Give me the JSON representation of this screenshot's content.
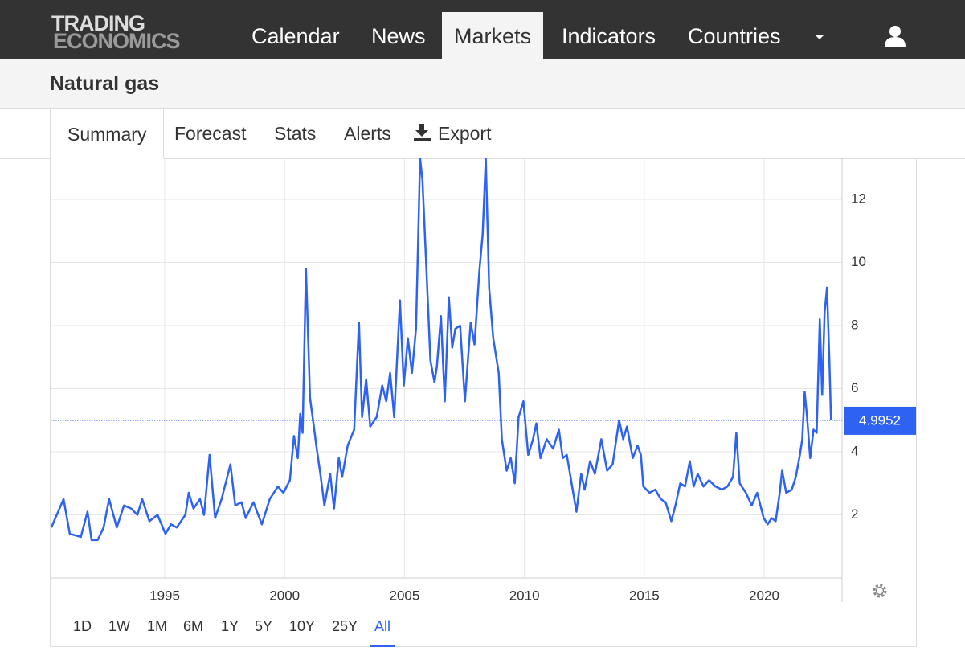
{
  "nav": {
    "logo": [
      "TRADING",
      "ECONOMICS"
    ],
    "items": [
      "Calendar",
      "News",
      "Markets",
      "Indicators",
      "Countries"
    ],
    "active": 2
  },
  "header": {
    "title": "Natural gas"
  },
  "tabs": {
    "items": [
      "Summary",
      "Forecast",
      "Stats",
      "Alerts",
      "Export"
    ],
    "active": 0
  },
  "chart_data": {
    "type": "line",
    "color": "#2d62f2",
    "x": [
      1990.27,
      1990.78,
      1991.04,
      1991.5,
      1991.78,
      1991.95,
      1992.2,
      1992.45,
      1992.68,
      1993.0,
      1993.3,
      1993.6,
      1993.86,
      1994.06,
      1994.36,
      1994.7,
      1995.03,
      1995.26,
      1995.5,
      1995.86,
      1996.0,
      1996.2,
      1996.47,
      1996.64,
      1996.87,
      1997.1,
      1997.37,
      1997.74,
      1997.94,
      1998.2,
      1998.38,
      1998.7,
      1999.05,
      1999.38,
      1999.72,
      1999.95,
      2000.22,
      2000.39,
      2000.55,
      2000.65,
      2000.75,
      2000.89,
      2001.06,
      2001.22,
      2001.32,
      2001.49,
      2001.66,
      2001.9,
      2002.06,
      2002.26,
      2002.4,
      2002.63,
      2002.9,
      2003.1,
      2003.23,
      2003.4,
      2003.57,
      2003.84,
      2004.07,
      2004.24,
      2004.4,
      2004.57,
      2004.81,
      2004.97,
      2005.14,
      2005.31,
      2005.48,
      2005.65,
      2005.75,
      2005.85,
      2006.08,
      2006.25,
      2006.35,
      2006.52,
      2006.68,
      2006.85,
      2006.99,
      2007.12,
      2007.32,
      2007.52,
      2007.76,
      2007.92,
      2008.12,
      2008.26,
      2008.39,
      2008.53,
      2008.7,
      2008.93,
      2009.06,
      2009.26,
      2009.43,
      2009.6,
      2009.76,
      2009.96,
      2010.16,
      2010.36,
      2010.5,
      2010.67,
      2010.93,
      2011.2,
      2011.44,
      2011.6,
      2011.77,
      2011.97,
      2012.17,
      2012.37,
      2012.51,
      2012.74,
      2012.94,
      2013.21,
      2013.45,
      2013.68,
      2013.95,
      2014.12,
      2014.28,
      2014.52,
      2014.72,
      2014.86,
      2014.96,
      2015.22,
      2015.46,
      2015.69,
      2015.89,
      2016.13,
      2016.3,
      2016.5,
      2016.7,
      2016.9,
      2017.06,
      2017.23,
      2017.47,
      2017.7,
      2017.97,
      2018.24,
      2018.47,
      2018.7,
      2018.84,
      2018.98,
      2019.24,
      2019.48,
      2019.71,
      2019.98,
      2020.15,
      2020.31,
      2020.48,
      2020.65,
      2020.75,
      2020.92,
      2021.15,
      2021.32,
      2021.49,
      2021.59,
      2021.69,
      2021.79,
      2021.92,
      2022.06,
      2022.19,
      2022.32,
      2022.42,
      2022.52,
      2022.62,
      2022.72,
      2022.79
    ],
    "values": [
      1.6,
      2.5,
      1.4,
      1.3,
      2.1,
      1.2,
      1.2,
      1.6,
      2.5,
      1.6,
      2.3,
      2.2,
      2.0,
      2.5,
      1.8,
      2.0,
      1.4,
      1.7,
      1.6,
      2.0,
      2.7,
      2.2,
      2.5,
      2.0,
      3.9,
      1.9,
      2.5,
      3.6,
      2.3,
      2.4,
      1.9,
      2.4,
      1.7,
      2.5,
      2.9,
      2.7,
      3.1,
      4.5,
      3.8,
      5.2,
      4.6,
      9.8,
      5.7,
      4.8,
      4.2,
      3.3,
      2.3,
      3.3,
      2.2,
      3.8,
      3.2,
      4.2,
      4.7,
      8.1,
      5.1,
      6.3,
      4.8,
      5.1,
      6.1,
      5.6,
      6.5,
      5.1,
      8.8,
      6.1,
      7.6,
      6.5,
      7.9,
      13.3,
      12.6,
      10.9,
      6.9,
      6.2,
      6.7,
      8.3,
      5.6,
      8.9,
      7.3,
      7.9,
      8.0,
      5.6,
      8.1,
      7.4,
      9.7,
      10.9,
      13.3,
      9.2,
      7.6,
      6.5,
      4.4,
      3.4,
      3.8,
      3.0,
      5.1,
      5.6,
      3.9,
      4.4,
      4.9,
      3.8,
      4.4,
      4.1,
      4.7,
      3.8,
      3.9,
      3.0,
      2.1,
      3.3,
      2.8,
      3.7,
      3.3,
      4.4,
      3.4,
      3.6,
      5.0,
      4.4,
      4.8,
      3.8,
      4.2,
      3.9,
      2.9,
      2.7,
      2.8,
      2.5,
      2.4,
      1.8,
      2.3,
      3.0,
      2.9,
      3.7,
      2.9,
      3.3,
      2.9,
      3.1,
      2.9,
      2.8,
      2.9,
      3.2,
      4.6,
      3.0,
      2.7,
      2.3,
      2.7,
      1.9,
      1.7,
      1.9,
      1.8,
      2.7,
      3.4,
      2.7,
      2.8,
      3.2,
      3.9,
      4.4,
      5.9,
      5.1,
      3.8,
      4.7,
      4.6,
      8.2,
      5.8,
      8.4,
      9.2,
      6.9,
      4.9952
    ],
    "last_value": 4.9952,
    "xlim": [
      1990.24,
      2023.25
    ],
    "xticks": [
      1995,
      2000,
      2005,
      2010,
      2015,
      2020
    ],
    "ylim": [
      0,
      13.3
    ],
    "yticks": [
      2,
      4,
      6,
      8,
      10,
      12
    ],
    "grid": true
  },
  "ranges": {
    "items": [
      "1D",
      "1W",
      "1M",
      "6M",
      "1Y",
      "5Y",
      "10Y",
      "25Y",
      "All"
    ],
    "active": 8
  }
}
